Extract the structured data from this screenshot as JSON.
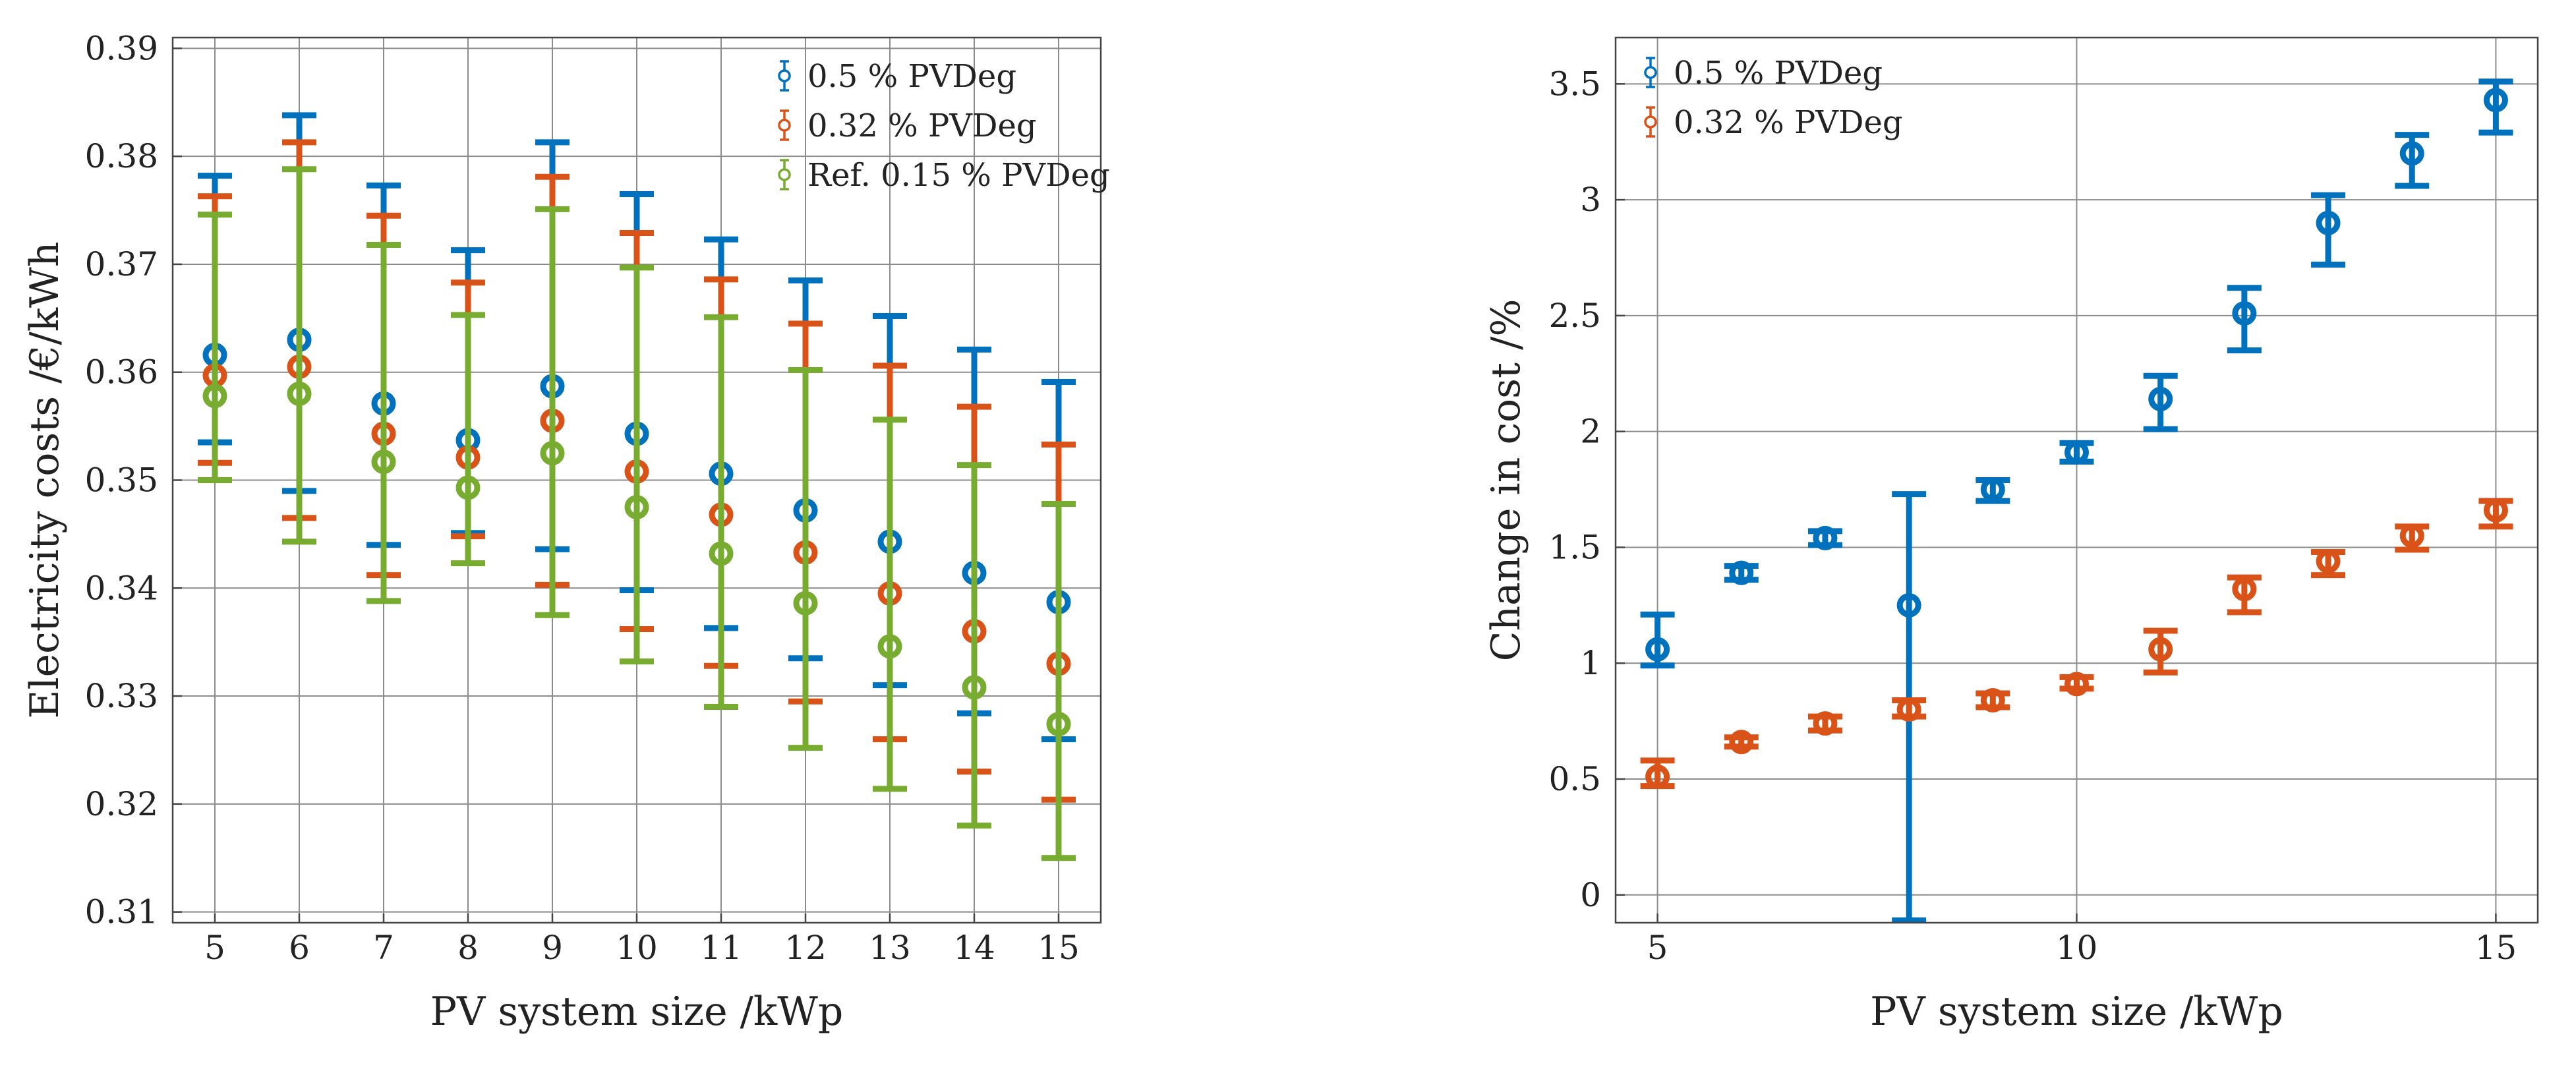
{
  "chart_data": [
    {
      "type": "scatter",
      "subtype": "errorbar",
      "title": "",
      "xlabel": "PV system size /kWp",
      "ylabel": "Electricity costs /€/kWh",
      "xlim": [
        4.5,
        15.5
      ],
      "ylim": [
        0.309,
        0.391
      ],
      "xticks": [
        5,
        6,
        7,
        8,
        9,
        10,
        11,
        12,
        13,
        14,
        15
      ],
      "yticks": [
        0.31,
        0.32,
        0.33,
        0.34,
        0.35,
        0.36,
        0.37,
        0.38,
        0.39
      ],
      "xtick_labels": [
        "5",
        "6",
        "7",
        "8",
        "9",
        "10",
        "11",
        "12",
        "13",
        "14",
        "15"
      ],
      "ytick_labels": [
        "0.31",
        "0.32",
        "0.33",
        "0.34",
        "0.35",
        "0.36",
        "0.37",
        "0.38",
        "0.39"
      ],
      "grid": true,
      "legend_position": "top-right",
      "series": [
        {
          "name": "0.5 % PVDeg",
          "color": "#0072BD",
          "x": [
            5,
            6,
            7,
            8,
            9,
            10,
            11,
            12,
            13,
            14,
            15
          ],
          "y": [
            0.3616,
            0.363,
            0.3571,
            0.3537,
            0.3587,
            0.3543,
            0.3506,
            0.3472,
            0.3443,
            0.3414,
            0.3387
          ],
          "lower": [
            0.3535,
            0.349,
            0.344,
            0.3451,
            0.3436,
            0.3398,
            0.3363,
            0.3335,
            0.331,
            0.3284,
            0.326
          ],
          "upper": [
            0.3782,
            0.3838,
            0.3773,
            0.3713,
            0.3813,
            0.3765,
            0.3723,
            0.3685,
            0.3652,
            0.3621,
            0.3591
          ]
        },
        {
          "name": "0.32 % PVDeg",
          "color": "#D95319",
          "x": [
            5,
            6,
            7,
            8,
            9,
            10,
            11,
            12,
            13,
            14,
            15
          ],
          "y": [
            0.3597,
            0.3605,
            0.3543,
            0.3521,
            0.3555,
            0.3508,
            0.3468,
            0.3433,
            0.3395,
            0.336,
            0.333
          ],
          "lower": [
            0.3516,
            0.3465,
            0.3412,
            0.3448,
            0.3403,
            0.3362,
            0.3328,
            0.3295,
            0.326,
            0.323,
            0.3204
          ],
          "upper": [
            0.3763,
            0.3813,
            0.3745,
            0.3683,
            0.3781,
            0.3729,
            0.3686,
            0.3645,
            0.3606,
            0.3568,
            0.3533
          ]
        },
        {
          "name": "Ref. 0.15 % PVDeg",
          "color": "#77AC30",
          "x": [
            5,
            6,
            7,
            8,
            9,
            10,
            11,
            12,
            13,
            14,
            15
          ],
          "y": [
            0.3578,
            0.358,
            0.3517,
            0.3493,
            0.3525,
            0.3475,
            0.3432,
            0.3386,
            0.3346,
            0.3308,
            0.3274
          ],
          "lower": [
            0.35,
            0.3443,
            0.3388,
            0.3423,
            0.3375,
            0.3332,
            0.329,
            0.3252,
            0.3214,
            0.318,
            0.315
          ],
          "upper": [
            0.3746,
            0.3788,
            0.3718,
            0.3653,
            0.3751,
            0.3697,
            0.3651,
            0.3602,
            0.3556,
            0.3514,
            0.3478
          ]
        }
      ]
    },
    {
      "type": "scatter",
      "subtype": "errorbar",
      "title": "",
      "xlabel": "PV system size /kWp",
      "ylabel": "Change in cost /%",
      "xlim": [
        4.5,
        15.5
      ],
      "ylim": [
        -0.12,
        3.7
      ],
      "xticks": [
        5,
        10,
        15
      ],
      "yticks": [
        0,
        0.5,
        1,
        1.5,
        2,
        2.5,
        3,
        3.5
      ],
      "xtick_labels": [
        "5",
        "10",
        "15"
      ],
      "ytick_labels": [
        "0",
        "0.5",
        "1",
        "1.5",
        "2",
        "2.5",
        "3",
        "3.5"
      ],
      "grid": true,
      "legend_position": "top-left",
      "series": [
        {
          "name": "0.5 % PVDeg",
          "color": "#0072BD",
          "x": [
            5,
            6,
            7,
            8,
            9,
            10,
            11,
            12,
            13,
            14,
            15
          ],
          "y": [
            1.06,
            1.39,
            1.54,
            1.25,
            1.75,
            1.91,
            2.14,
            2.51,
            2.9,
            3.2,
            3.43
          ],
          "lower": [
            0.99,
            1.36,
            1.51,
            -0.11,
            1.7,
            1.87,
            2.01,
            2.35,
            2.72,
            3.06,
            3.29
          ],
          "upper": [
            1.21,
            1.42,
            1.57,
            1.73,
            1.79,
            1.95,
            2.24,
            2.62,
            3.02,
            3.28,
            3.51
          ]
        },
        {
          "name": "0.32 % PVDeg",
          "color": "#D95319",
          "x": [
            5,
            6,
            7,
            8,
            9,
            10,
            11,
            12,
            13,
            14,
            15
          ],
          "y": [
            0.51,
            0.66,
            0.74,
            0.8,
            0.84,
            0.91,
            1.06,
            1.32,
            1.44,
            1.55,
            1.66
          ],
          "lower": [
            0.47,
            0.64,
            0.71,
            0.77,
            0.81,
            0.89,
            0.96,
            1.22,
            1.38,
            1.49,
            1.59
          ],
          "upper": [
            0.58,
            0.68,
            0.77,
            0.84,
            0.87,
            0.94,
            1.14,
            1.37,
            1.48,
            1.59,
            1.7
          ]
        }
      ]
    }
  ]
}
